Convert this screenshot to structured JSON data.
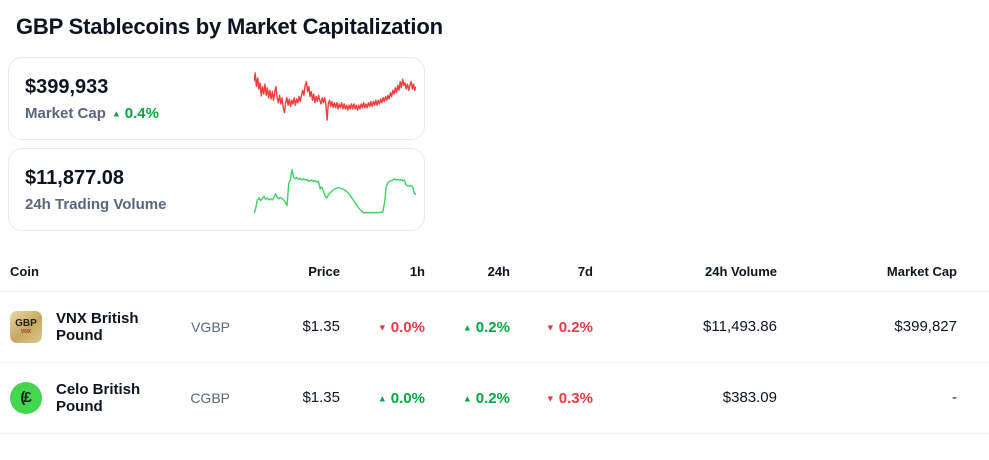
{
  "page": {
    "title": "GBP Stablecoins by Market Capitalization"
  },
  "colors": {
    "green": "#00a83e",
    "red": "#ea3943",
    "text_dark": "#0d1421",
    "text_muted": "#58667e",
    "divider": "#eff2f5",
    "card_border": "#e7eaee",
    "celo_green": "#45d64f",
    "vnx_gold_light": "#ead9a8",
    "vnx_gold_dark": "#c5a760"
  },
  "stats": {
    "market_cap": {
      "value": "$399,933",
      "label": "Market Cap",
      "change": {
        "value": "0.4%",
        "dir": "up"
      },
      "sparkline": {
        "color": "#f53b3b",
        "values": [
          22,
          8,
          30,
          16,
          34,
          24,
          45,
          30,
          42,
          26,
          44,
          32,
          48,
          36,
          50,
          38,
          52,
          40,
          30,
          48,
          56,
          44,
          58,
          48,
          64,
          72,
          56,
          48,
          60,
          50,
          62,
          52,
          58,
          48,
          60,
          50,
          56,
          46,
          54,
          44,
          36,
          44,
          28,
          22,
          38,
          30,
          46,
          38,
          52,
          42,
          56,
          46,
          54,
          44,
          52,
          58,
          48,
          56,
          48,
          58,
          84,
          58,
          52,
          62,
          54,
          64,
          56,
          64,
          56,
          66,
          58,
          64,
          56,
          66,
          58,
          66,
          60,
          68,
          60,
          66,
          58,
          66,
          58,
          66,
          60,
          68,
          60,
          66,
          58,
          64,
          56,
          64,
          58,
          64,
          56,
          62,
          54,
          62,
          54,
          60,
          52,
          60,
          52,
          58,
          50,
          56,
          48,
          54,
          46,
          52,
          44,
          50,
          40,
          46,
          36,
          42,
          32,
          40,
          28,
          36,
          22,
          32,
          18,
          28,
          24,
          34,
          26,
          36,
          28,
          22,
          34,
          26,
          36,
          30
        ]
      }
    },
    "volume": {
      "value": "$11,877.08",
      "label": "24h Trading Volume",
      "sparkline": {
        "color": "#3cd45f",
        "values": [
          88,
          80,
          66,
          63,
          67,
          64,
          60,
          65,
          63,
          66,
          64,
          66,
          63,
          56,
          62,
          64,
          62,
          64,
          66,
          70,
          75,
          40,
          33,
          17,
          30,
          32,
          30,
          33,
          31,
          34,
          32,
          34,
          33,
          36,
          35,
          34,
          36,
          35,
          37,
          36,
          48,
          45,
          52,
          60,
          63,
          58,
          55,
          52,
          50,
          48,
          47,
          46,
          47,
          48,
          49,
          50,
          52,
          55,
          58,
          62,
          66,
          70,
          74,
          78,
          81,
          84,
          86,
          87,
          86,
          87,
          86,
          87,
          86,
          87,
          86,
          87,
          86,
          86,
          85,
          70,
          45,
          38,
          36,
          35,
          34,
          32,
          34,
          33,
          34,
          33,
          35,
          34,
          42,
          43,
          44,
          43,
          45,
          55,
          58
        ]
      }
    }
  },
  "table": {
    "columns": [
      "Coin",
      "Price",
      "1h",
      "24h",
      "7d",
      "24h Volume",
      "Market Cap"
    ],
    "rows": [
      {
        "name": "VNX British Pound",
        "symbol": "VGBP",
        "icon": {
          "kind": "vnx-gold-square",
          "text": "GBP",
          "subtext": "VNX"
        },
        "price": "$1.35",
        "h1": {
          "value": "0.0%",
          "dir": "down"
        },
        "h24": {
          "value": "0.2%",
          "dir": "up"
        },
        "d7": {
          "value": "0.2%",
          "dir": "down"
        },
        "volume": "$11,493.86",
        "market_cap": "$399,827"
      },
      {
        "name": "Celo British Pound",
        "symbol": "CGBP",
        "icon": {
          "kind": "celo-green-circle",
          "text": "(£"
        },
        "price": "$1.35",
        "h1": {
          "value": "0.0%",
          "dir": "up"
        },
        "h24": {
          "value": "0.2%",
          "dir": "up"
        },
        "d7": {
          "value": "0.3%",
          "dir": "down"
        },
        "volume": "$383.09",
        "market_cap": "-"
      }
    ]
  }
}
